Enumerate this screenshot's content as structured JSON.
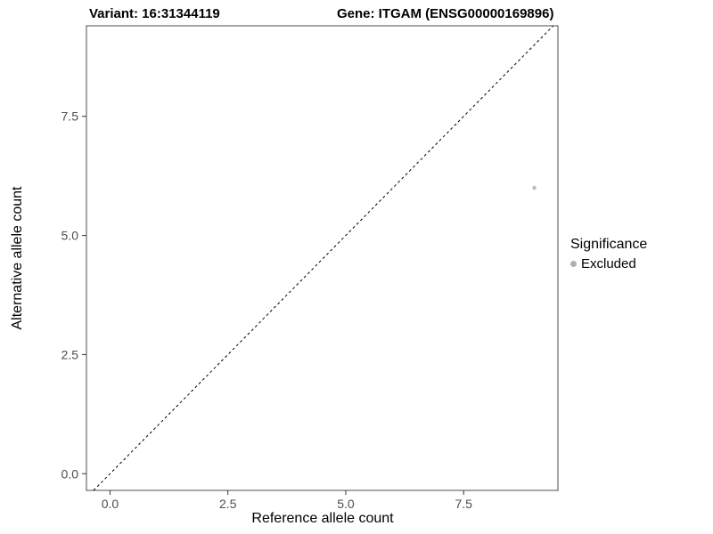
{
  "titles": {
    "variant": "Variant: 16:31344119",
    "gene": "Gene: ITGAM (ENSG00000169896)"
  },
  "chart_data": {
    "type": "scatter",
    "title": "Variant: 16:31344119   Gene: ITGAM (ENSG00000169896)",
    "xlabel": "Reference allele count",
    "ylabel": "Alternative allele count",
    "xlim": [
      -0.5,
      9.5
    ],
    "ylim": [
      -0.35,
      9.4
    ],
    "xticks": [
      0.0,
      2.5,
      5.0,
      7.5
    ],
    "yticks": [
      0.0,
      2.5,
      5.0,
      7.5
    ],
    "xtick_labels": [
      "0.0",
      "2.5",
      "5.0",
      "7.5"
    ],
    "ytick_labels": [
      "0.0",
      "2.5",
      "5.0",
      "7.5"
    ],
    "grid": false,
    "panel_border_color": "#4d4d4d",
    "tick_color": "#333333",
    "tick_label_color": "#4d4d4d",
    "reference_line": {
      "type": "identity",
      "style": "dashed",
      "color": "#000000"
    },
    "series": [
      {
        "name": "Excluded",
        "color": "#bdbdbd",
        "points": [
          {
            "x": 9,
            "y": 6
          }
        ]
      }
    ],
    "legend": {
      "title": "Significance",
      "position": "right",
      "entries": [
        {
          "label": "Excluded",
          "color": "#b0b0b0"
        }
      ]
    }
  }
}
